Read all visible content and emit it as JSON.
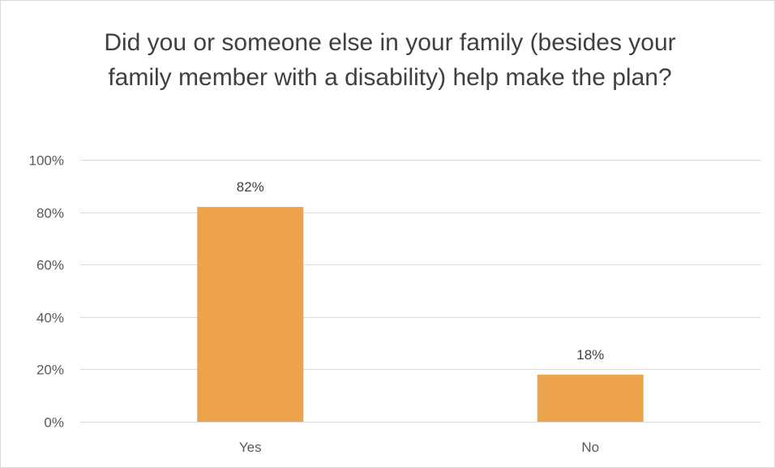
{
  "chart_data": {
    "type": "bar",
    "title": "Did you or someone else in your family (besides your family member with a disability) help make the plan?",
    "categories": [
      "Yes",
      "No"
    ],
    "values": [
      82,
      18
    ],
    "data_labels": [
      "82%",
      "18%"
    ],
    "ylim": [
      0,
      100
    ],
    "y_ticks": [
      0,
      20,
      40,
      60,
      80,
      100
    ],
    "y_tick_labels": [
      "0%",
      "20%",
      "40%",
      "60%",
      "80%",
      "100%"
    ],
    "xlabel": "",
    "ylabel": "",
    "grid": true,
    "legend": "none",
    "bar_color": "#EDA24C",
    "gridline_color": "#D9D9D9"
  }
}
